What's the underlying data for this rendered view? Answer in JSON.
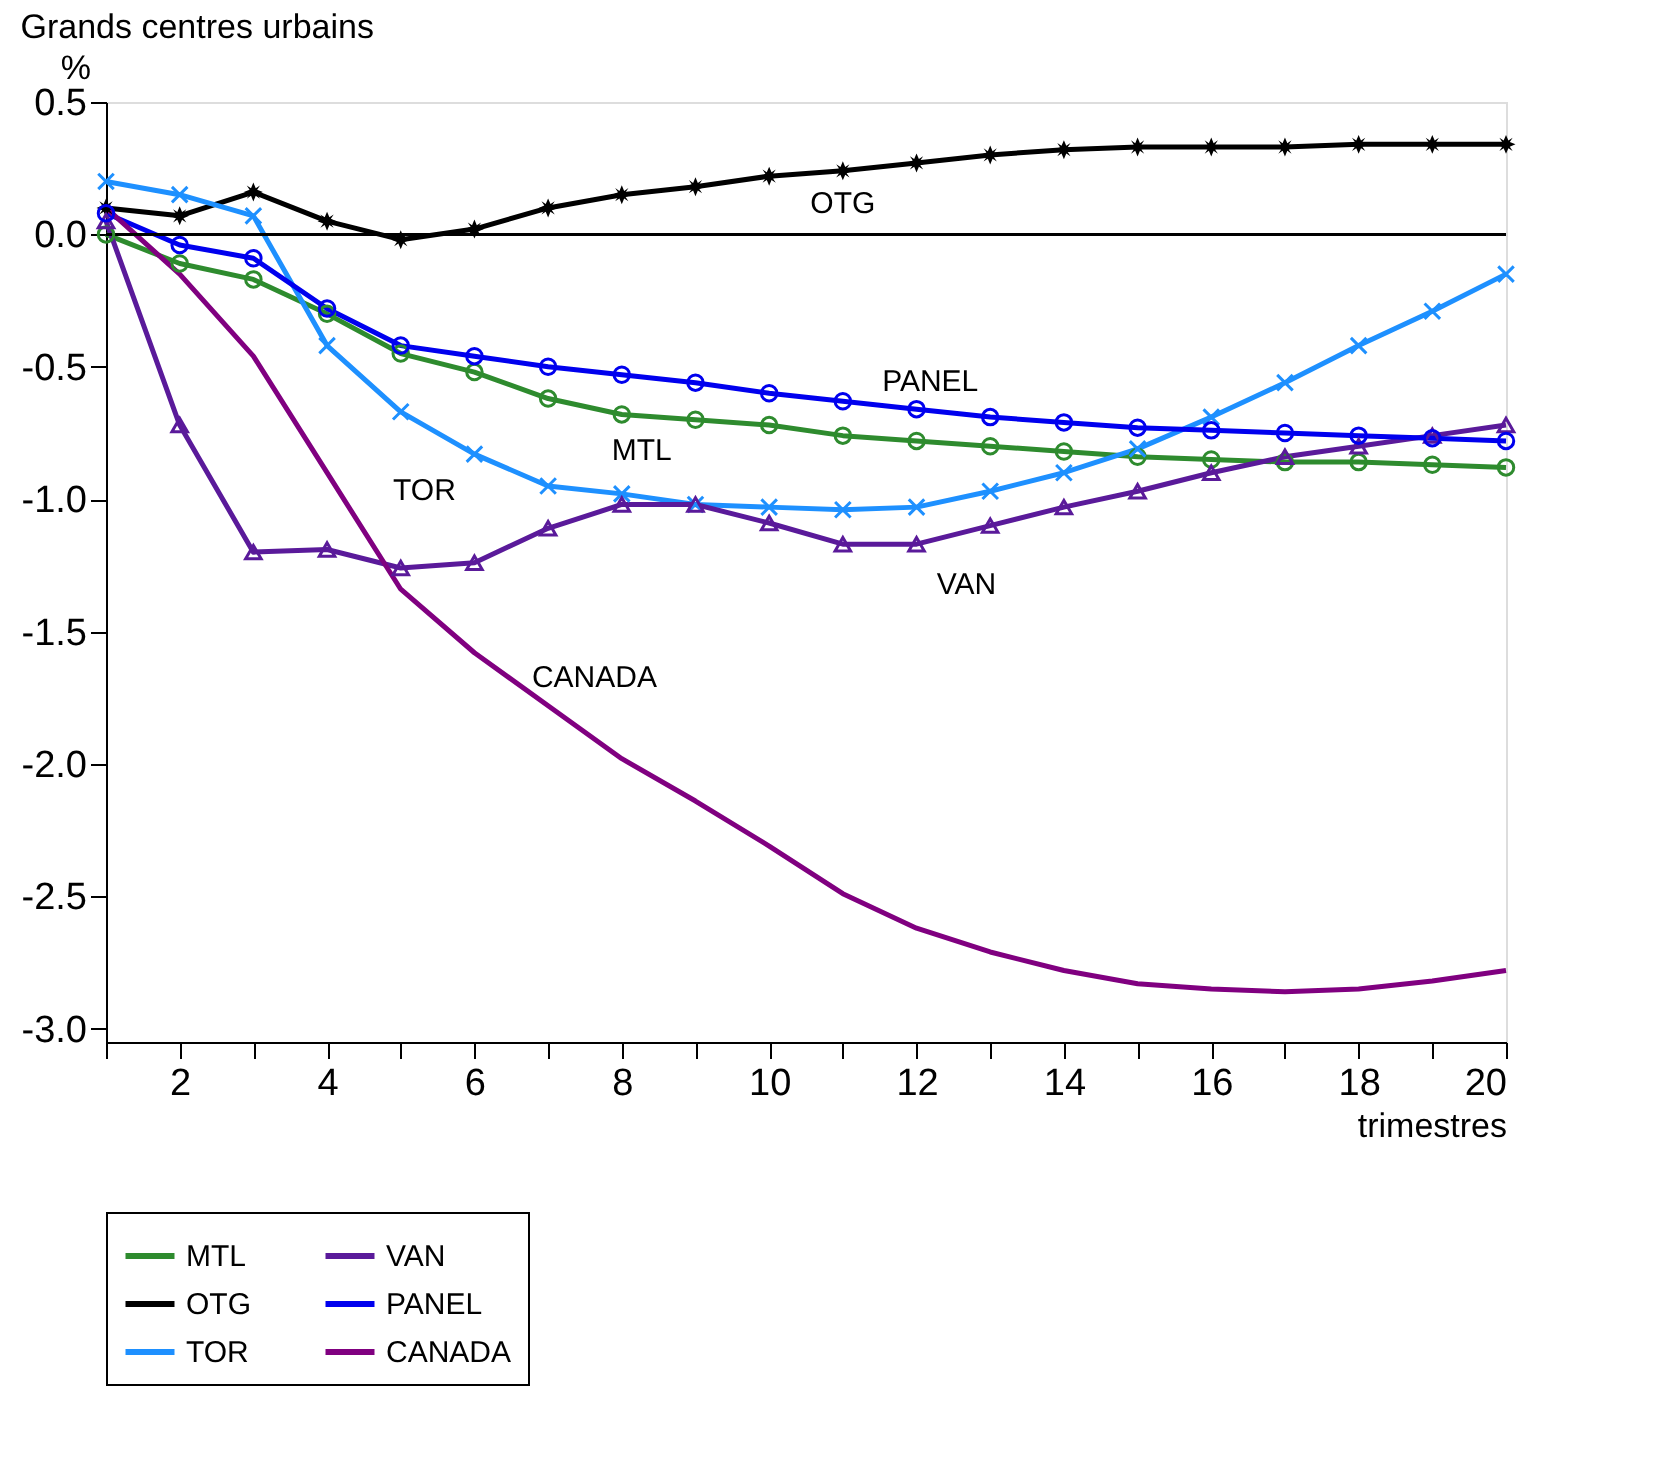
{
  "chart_data": {
    "type": "line",
    "title": "Grands centres urbains",
    "xlabel": "trimestres",
    "ylabel": "%",
    "x": [
      1,
      2,
      3,
      4,
      5,
      6,
      7,
      8,
      9,
      10,
      11,
      12,
      13,
      14,
      15,
      16,
      17,
      18,
      19,
      20
    ],
    "series": [
      {
        "name": "MTL",
        "color": "#2e8b2e",
        "marker": "circle",
        "values": [
          0.0,
          -0.11,
          -0.17,
          -0.3,
          -0.45,
          -0.52,
          -0.62,
          -0.68,
          -0.7,
          -0.72,
          -0.76,
          -0.78,
          -0.8,
          -0.82,
          -0.84,
          -0.85,
          -0.86,
          -0.86,
          -0.87,
          -0.88
        ]
      },
      {
        "name": "OTG",
        "color": "#000000",
        "marker": "star",
        "values": [
          0.1,
          0.07,
          0.16,
          0.05,
          -0.02,
          0.02,
          0.1,
          0.15,
          0.18,
          0.22,
          0.24,
          0.27,
          0.3,
          0.32,
          0.33,
          0.33,
          0.33,
          0.34,
          0.34,
          0.34
        ]
      },
      {
        "name": "TOR",
        "color": "#1e90ff",
        "marker": "cross",
        "values": [
          0.2,
          0.15,
          0.07,
          -0.42,
          -0.67,
          -0.83,
          -0.95,
          -0.98,
          -1.02,
          -1.03,
          -1.04,
          -1.03,
          -0.97,
          -0.9,
          -0.81,
          -0.69,
          -0.56,
          -0.42,
          -0.29,
          -0.15
        ]
      },
      {
        "name": "VAN",
        "color": "#5a1a9a",
        "marker": "triangle",
        "values": [
          0.05,
          -0.72,
          -1.2,
          -1.19,
          -1.26,
          -1.24,
          -1.11,
          -1.02,
          -1.02,
          -1.09,
          -1.17,
          -1.17,
          -1.1,
          -1.03,
          -0.97,
          -0.9,
          -0.84,
          -0.8,
          -0.76,
          -0.72
        ]
      },
      {
        "name": "PANEL",
        "color": "#0000ee",
        "marker": "circle",
        "values": [
          0.08,
          -0.04,
          -0.09,
          -0.28,
          -0.42,
          -0.46,
          -0.5,
          -0.53,
          -0.56,
          -0.6,
          -0.63,
          -0.66,
          -0.69,
          -0.71,
          -0.73,
          -0.74,
          -0.75,
          -0.76,
          -0.77,
          -0.78
        ]
      },
      {
        "name": "CANADA",
        "color": "#800080",
        "marker": "none",
        "values": [
          0.1,
          -0.15,
          -0.46,
          -0.9,
          -1.34,
          -1.58,
          -1.78,
          -1.98,
          -2.14,
          -2.31,
          -2.49,
          -2.62,
          -2.71,
          -2.78,
          -2.83,
          -2.85,
          -2.86,
          -2.85,
          -2.82,
          -2.78
        ]
      }
    ],
    "annotations": [
      {
        "text": "OTG",
        "x": 11,
        "y": 0.24
      },
      {
        "text": "PANEL",
        "x": 13,
        "y": -0.69
      },
      {
        "text": "MTL",
        "x": 8,
        "y": -0.68
      },
      {
        "text": "TOR",
        "x": 6,
        "y": -0.83
      },
      {
        "text": "VAN",
        "x": 12,
        "y": -1.17
      },
      {
        "text": "CANADA",
        "x": 6,
        "y": -1.58
      }
    ],
    "ref_lines": [
      {
        "axis": "y",
        "value": 0,
        "color": "#000000"
      }
    ],
    "xlim": [
      1,
      20
    ],
    "xticks": [
      {
        "value": 1,
        "label": null
      },
      2,
      {
        "value": 3,
        "label": null
      },
      4,
      {
        "value": 5,
        "label": null
      },
      6,
      {
        "value": 7,
        "label": null
      },
      8,
      {
        "value": 9,
        "label": null
      },
      10,
      {
        "value": 11,
        "label": null
      },
      12,
      {
        "value": 13,
        "label": null
      },
      14,
      {
        "value": 15,
        "label": null
      },
      16,
      {
        "value": 17,
        "label": null
      },
      18,
      {
        "value": 19,
        "label": null
      },
      20
    ],
    "ylim": [
      -3.05,
      0.5
    ],
    "yticks": [
      {
        "value": 0.5,
        "label": "0.5"
      },
      {
        "value": 0,
        "label": "0.0"
      },
      {
        "value": -0.5,
        "label": "-0.5"
      },
      {
        "value": -1,
        "label": "-1.0"
      },
      {
        "value": -1.5,
        "label": "-1.5"
      },
      {
        "value": -2,
        "label": "-2.0"
      },
      {
        "value": -2.5,
        "label": "-2.5"
      },
      {
        "value": -3,
        "label": "-3.0"
      }
    ],
    "grid": false,
    "legend": "bottom",
    "line_style": "solid"
  }
}
